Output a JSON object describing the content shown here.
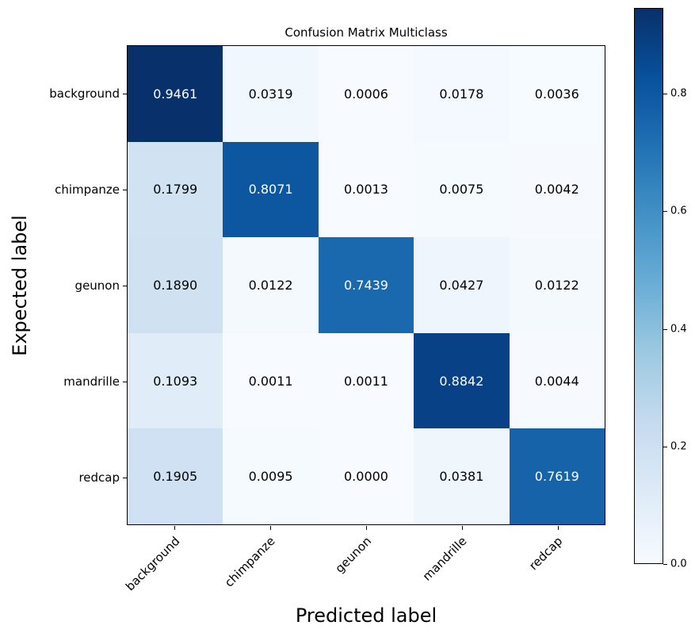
{
  "chart_data": {
    "type": "heatmap",
    "title": "Confusion Matrix Multiclass",
    "xlabel": "Predicted label",
    "ylabel": "Expected label",
    "x_tick_labels": [
      "background",
      "chimpanze",
      "geunon",
      "mandrille",
      "redcap"
    ],
    "y_tick_labels": [
      "background",
      "chimpanze",
      "geunon",
      "mandrille",
      "redcap"
    ],
    "matrix": [
      [
        0.9461,
        0.0319,
        0.0006,
        0.0178,
        0.0036
      ],
      [
        0.1799,
        0.8071,
        0.0013,
        0.0075,
        0.0042
      ],
      [
        0.189,
        0.0122,
        0.7439,
        0.0427,
        0.0122
      ],
      [
        0.1093,
        0.0011,
        0.0011,
        0.8842,
        0.0044
      ],
      [
        0.1905,
        0.0095,
        0.0,
        0.0381,
        0.7619
      ]
    ],
    "value_decimals": 4,
    "vmin": 0.0,
    "vmax": 0.9461,
    "colorbar": {
      "tick_values": [
        0.8,
        0.6,
        0.4,
        0.2,
        0.0
      ],
      "tick_decimals": 1
    },
    "colormap": {
      "name": "Blues",
      "anchors": [
        "#f7fbff",
        "#deebf7",
        "#c6dbef",
        "#9ecae1",
        "#6baed6",
        "#4292c6",
        "#2171b5",
        "#08519c",
        "#08306b"
      ]
    },
    "cell_text_color_light_bg": "#000000",
    "cell_text_color_dark_bg": "#ffffff",
    "legend_position": "right-colorbar",
    "grid": false
  }
}
